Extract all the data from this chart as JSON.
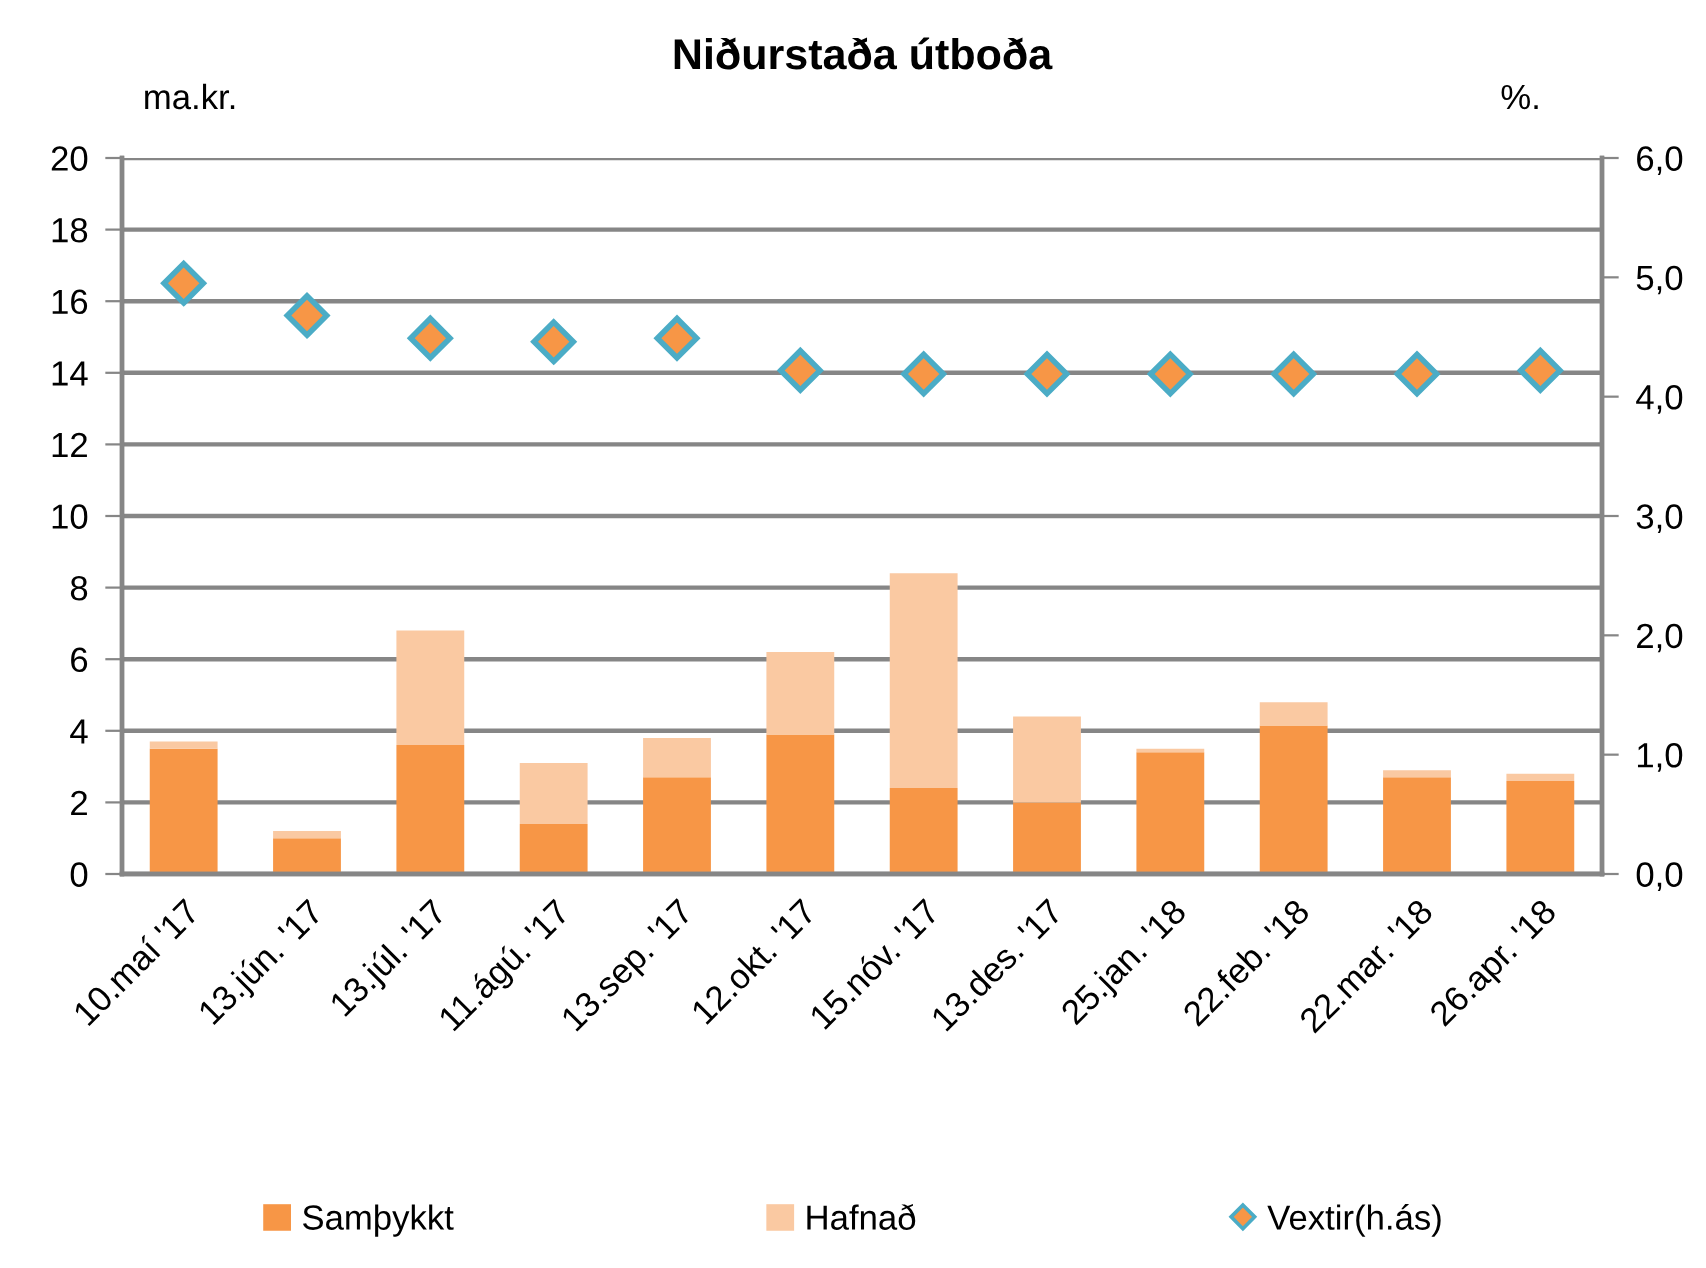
{
  "chart_data": {
    "type": "bar",
    "title": "Niðurstaða útboða",
    "ylabel": "ma.kr.",
    "y2label": "%.",
    "categories": [
      "10.maí '17",
      "13.jún. '17",
      "13.júl. '17",
      "11.ágú. '17",
      "13.sep. '17",
      "12.okt. '17",
      "15.nóv. '17",
      "13.des. '17",
      "25.jan. '18",
      "22.feb. '18",
      "22.mar. '18",
      "26.apr. '18"
    ],
    "stacked": true,
    "series": [
      {
        "name": "Samþykkt",
        "color": "#f79646",
        "values": [
          3.5,
          1.0,
          3.6,
          1.4,
          2.7,
          3.9,
          2.4,
          2.0,
          3.4,
          4.15,
          2.7,
          2.6
        ]
      },
      {
        "name": "Hafnað",
        "color": "#fac9a2",
        "values": [
          0.2,
          0.2,
          3.2,
          1.7,
          1.1,
          2.3,
          6.0,
          2.4,
          0.1,
          0.65,
          0.2,
          0.2
        ]
      },
      {
        "name": "Vextir(h.ás)",
        "type": "scatter",
        "axis": "y2",
        "marker": "diamond",
        "color": "#f79646",
        "values": [
          4.95,
          4.68,
          4.49,
          4.46,
          4.49,
          4.22,
          4.19,
          4.19,
          4.19,
          4.19,
          4.19,
          4.22
        ]
      }
    ],
    "ylim": [
      0,
      20
    ],
    "yticks": [
      0,
      2,
      4,
      6,
      8,
      10,
      12,
      14,
      16,
      18,
      20
    ],
    "y2lim": [
      0,
      6
    ],
    "y2ticks": [
      {
        "value": 0,
        "label": "0,0"
      },
      {
        "value": 1,
        "label": "1,0"
      },
      {
        "value": 2,
        "label": "2,0"
      },
      {
        "value": 3,
        "label": "3,0"
      },
      {
        "value": 4,
        "label": "4,0"
      },
      {
        "value": 5,
        "label": "5,0"
      },
      {
        "value": 6,
        "label": "6,0"
      }
    ],
    "grid": "y",
    "legend": "bottom"
  }
}
